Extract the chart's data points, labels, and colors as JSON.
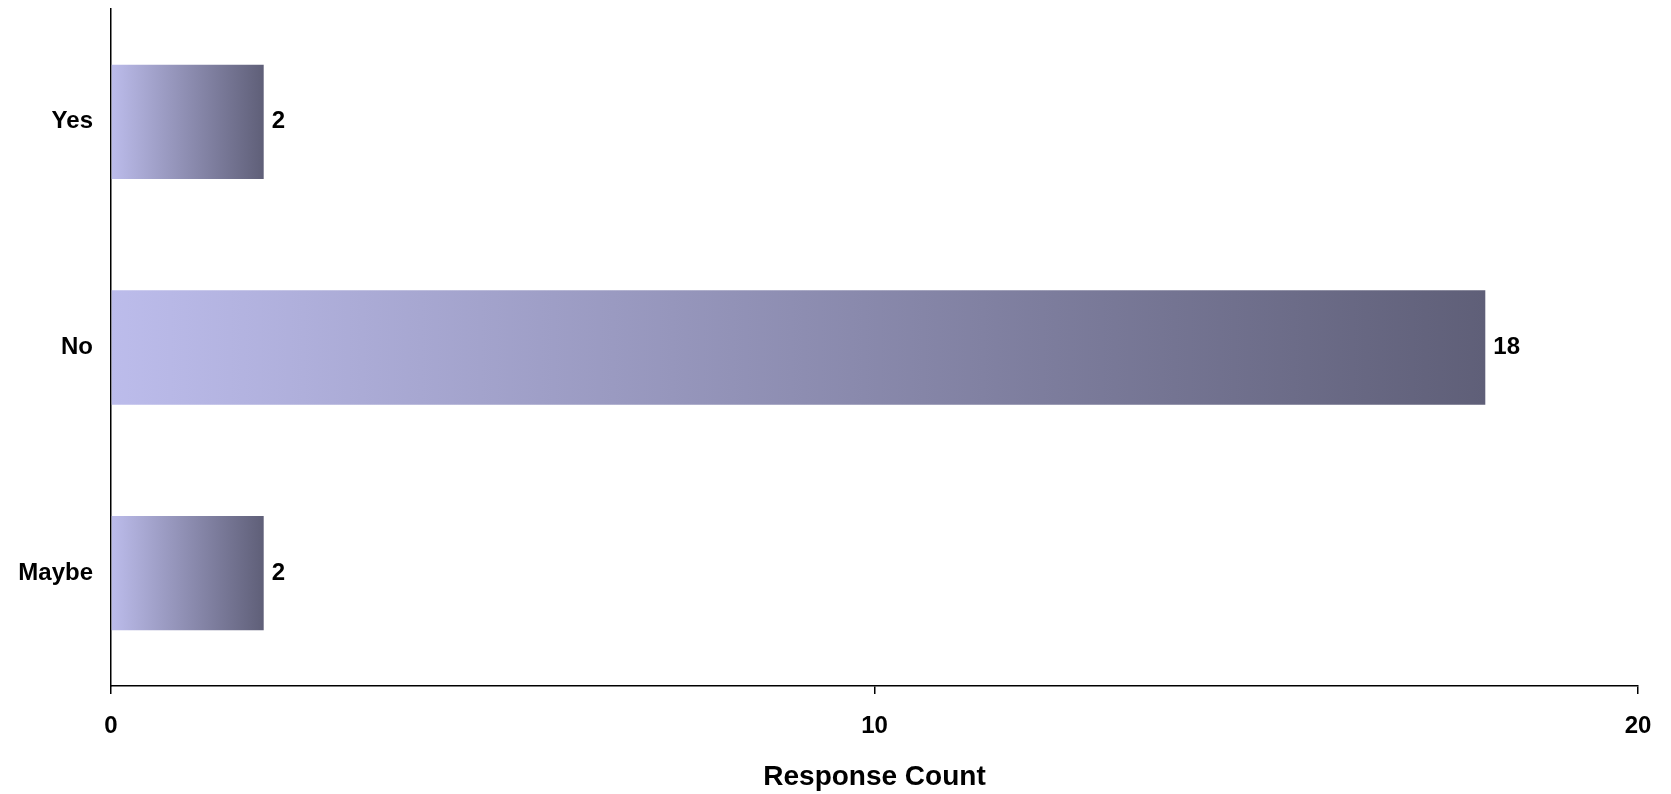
{
  "chart_data": {
    "type": "bar",
    "orientation": "horizontal",
    "xlabel": "Response Count",
    "categories": [
      "Yes",
      "No",
      "Maybe"
    ],
    "values": [
      2,
      18,
      2
    ],
    "color": "#5f5f78",
    "xlim": [
      0,
      20
    ],
    "xticks": [
      0,
      10,
      20
    ],
    "data_labels": true
  }
}
